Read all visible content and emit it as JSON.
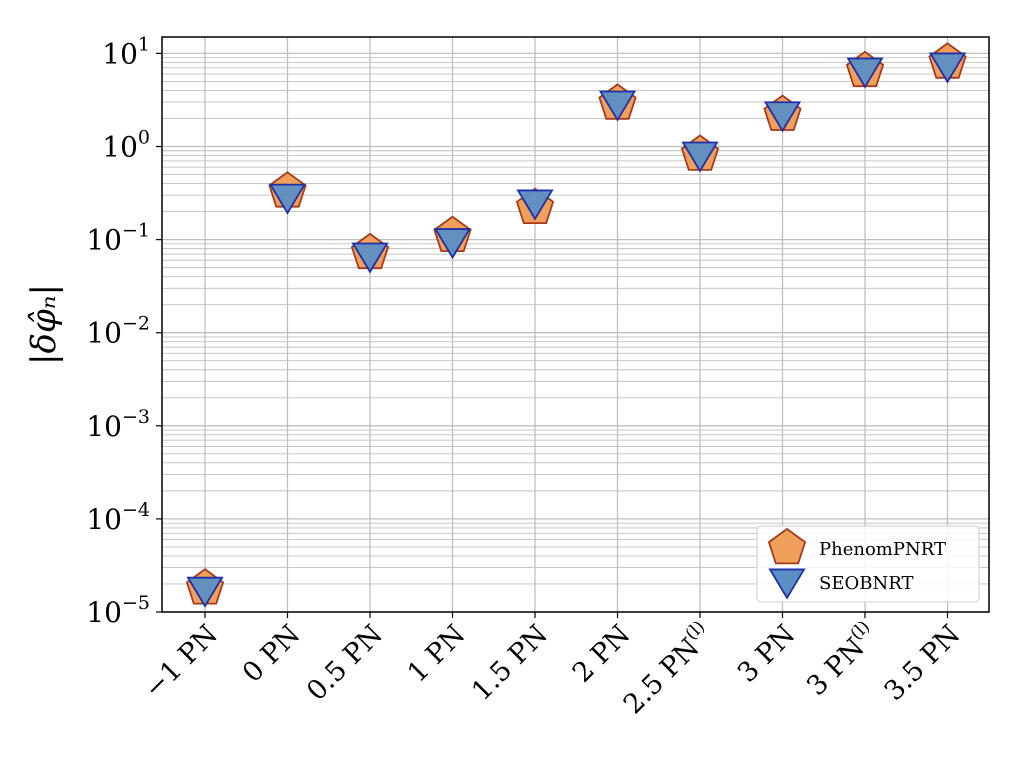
{
  "chart_data": {
    "type": "scatter",
    "title": "",
    "xlabel": "",
    "ylabel": "|δφ̂ₙ|",
    "yscale": "log",
    "ylim": [
      1e-05,
      15
    ],
    "grid": true,
    "legend_position": "lower-right",
    "categories": [
      {
        "base": "−1 PN",
        "sup": ""
      },
      {
        "base": "0 PN",
        "sup": ""
      },
      {
        "base": "0.5 PN",
        "sup": ""
      },
      {
        "base": "1 PN",
        "sup": ""
      },
      {
        "base": "1.5 PN",
        "sup": ""
      },
      {
        "base": "2 PN",
        "sup": ""
      },
      {
        "base": "2.5 PN",
        "sup": "(l)"
      },
      {
        "base": "3 PN",
        "sup": ""
      },
      {
        "base": "3 PN",
        "sup": "(l)"
      },
      {
        "base": "3.5 PN",
        "sup": ""
      }
    ],
    "yticks": [
      {
        "base": "10",
        "exp": "−5",
        "value": 1e-05
      },
      {
        "base": "10",
        "exp": "−4",
        "value": 0.0001
      },
      {
        "base": "10",
        "exp": "−3",
        "value": 0.001
      },
      {
        "base": "10",
        "exp": "−2",
        "value": 0.01
      },
      {
        "base": "10",
        "exp": "−1",
        "value": 0.1
      },
      {
        "base": "10",
        "exp": "0",
        "value": 1
      },
      {
        "base": "10",
        "exp": "1",
        "value": 10
      }
    ],
    "series": [
      {
        "name": "PhenomPNRT",
        "marker": "pentagon",
        "fill": "#f0a05a",
        "stroke": "#a63a1f",
        "values": [
          1.8e-05,
          0.33,
          0.072,
          0.11,
          0.22,
          2.9,
          0.82,
          2.2,
          6.5,
          8.0
        ]
      },
      {
        "name": "SEOBNRT",
        "marker": "triangle-down",
        "fill": "#5b8fc4",
        "stroke": "#1f2fa8",
        "values": [
          1.8e-05,
          0.3,
          0.07,
          0.1,
          0.26,
          3.0,
          0.85,
          2.3,
          6.8,
          7.7
        ]
      }
    ]
  }
}
